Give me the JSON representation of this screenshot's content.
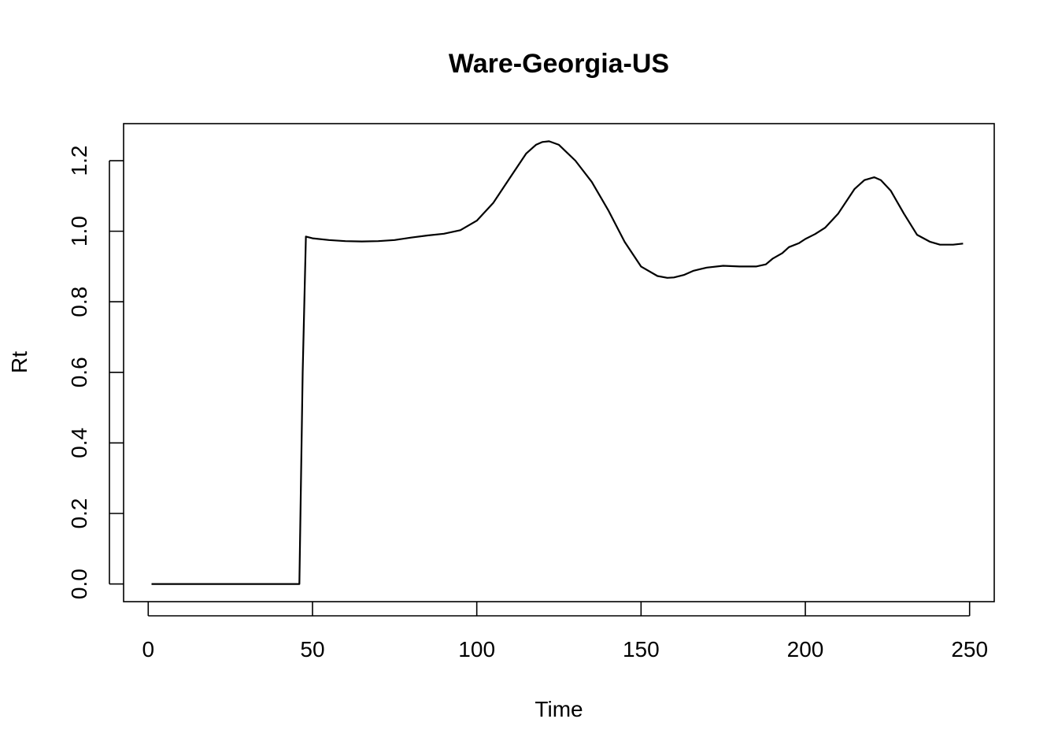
{
  "chart_data": {
    "type": "line",
    "title": "Ware-Georgia-US",
    "xlabel": "Time",
    "ylabel": "Rt",
    "xlim": [
      -7.5,
      257.5
    ],
    "ylim": [
      -0.05,
      1.305
    ],
    "x_ticks": [
      0,
      50,
      100,
      150,
      200,
      250
    ],
    "x_tick_labels": [
      "0",
      "50",
      "100",
      "150",
      "200",
      "250"
    ],
    "y_ticks": [
      0.0,
      0.2,
      0.4,
      0.6,
      0.8,
      1.0,
      1.2
    ],
    "y_tick_labels": [
      "0.0",
      "0.2",
      "0.4",
      "0.6",
      "0.8",
      "1.0",
      "1.2"
    ],
    "grid": false,
    "legend": "none",
    "series": [
      {
        "color": "#000000",
        "x": [
          1,
          10,
          20,
          30,
          40,
          46,
          47,
          48,
          50,
          55,
          60,
          65,
          70,
          75,
          80,
          85,
          90,
          95,
          100,
          105,
          110,
          115,
          118,
          120,
          122,
          125,
          130,
          135,
          140,
          145,
          150,
          155,
          158,
          160,
          163,
          166,
          170,
          175,
          180,
          185,
          188,
          190,
          193,
          195,
          198,
          200,
          203,
          206,
          210,
          215,
          218,
          221,
          223,
          226,
          230,
          234,
          238,
          241,
          245,
          248
        ],
        "y": [
          0,
          0,
          0,
          0,
          0,
          0,
          0.6,
          0.985,
          0.98,
          0.975,
          0.972,
          0.971,
          0.972,
          0.975,
          0.982,
          0.988,
          0.993,
          1.003,
          1.03,
          1.08,
          1.15,
          1.22,
          1.245,
          1.253,
          1.255,
          1.245,
          1.2,
          1.14,
          1.06,
          0.97,
          0.9,
          0.873,
          0.868,
          0.869,
          0.876,
          0.888,
          0.897,
          0.902,
          0.9,
          0.9,
          0.906,
          0.922,
          0.938,
          0.955,
          0.966,
          0.978,
          0.992,
          1.01,
          1.05,
          1.12,
          1.145,
          1.153,
          1.145,
          1.115,
          1.05,
          0.99,
          0.97,
          0.962,
          0.962,
          0.965
        ]
      }
    ]
  }
}
